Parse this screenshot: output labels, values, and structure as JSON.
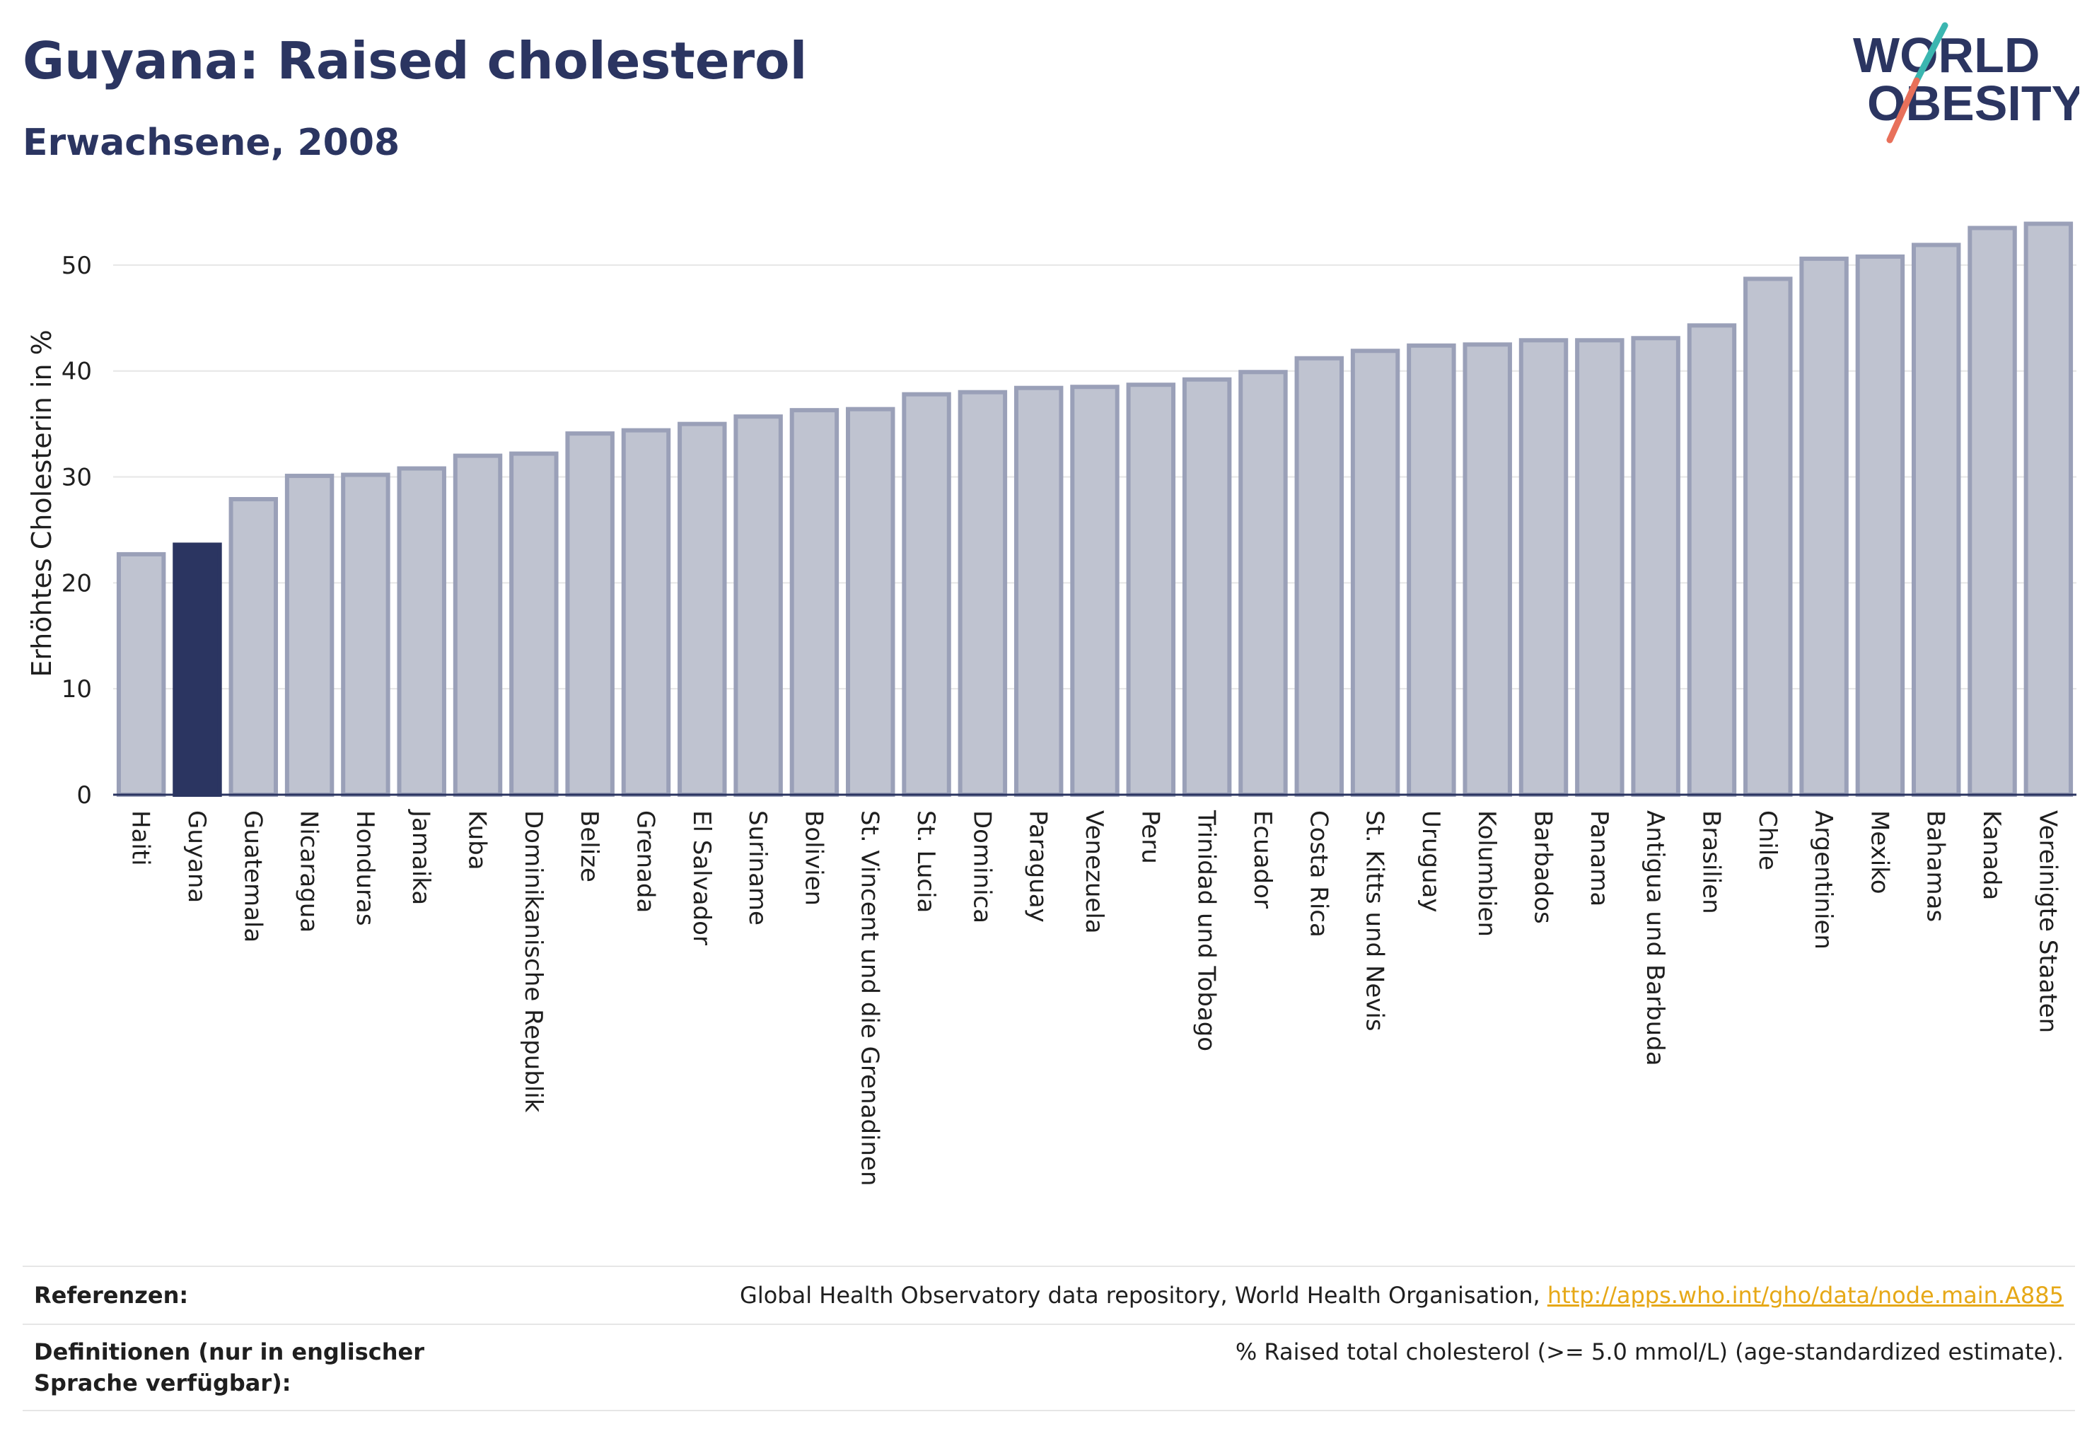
{
  "header": {
    "title": "Guyana: Raised cholesterol",
    "subtitle": "Erwachsene, 2008",
    "logo_line1": "WORLD",
    "logo_line2": "OBESITY"
  },
  "chart_data": {
    "type": "bar",
    "ylabel": "Erhöhtes Cholesterin in %",
    "ylim": [
      0,
      55
    ],
    "yticks": [
      0,
      10,
      20,
      30,
      40,
      50
    ],
    "grid": true,
    "highlight": "Guyana",
    "colors": {
      "bar": "#bfc3d0",
      "bar_edge": "#9aa0b8",
      "highlight": "#2b3561"
    },
    "categories": [
      "Haiti",
      "Guyana",
      "Guatemala",
      "Nicaragua",
      "Honduras",
      "Jamaika",
      "Kuba",
      "Dominikanische Republik",
      "Belize",
      "Grenada",
      "El Salvador",
      "Suriname",
      "Bolivien",
      "St. Vincent und die Grenadinen",
      "St. Lucia",
      "Dominica",
      "Paraguay",
      "Venezuela",
      "Peru",
      "Trinidad und Tobago",
      "Ecuador",
      "Costa Rica",
      "St. Kitts und Nevis",
      "Uruguay",
      "Kolumbien",
      "Barbados",
      "Panama",
      "Antigua und Barbuda",
      "Brasilien",
      "Chile",
      "Argentinien",
      "Mexiko",
      "Bahamas",
      "Kanada",
      "Vereinigte Staaten"
    ],
    "values": [
      22.7,
      23.6,
      27.9,
      30.1,
      30.2,
      30.8,
      32.0,
      32.2,
      34.1,
      34.4,
      35.0,
      35.7,
      36.3,
      36.4,
      37.8,
      38.0,
      38.4,
      38.5,
      38.7,
      39.2,
      39.9,
      41.2,
      41.9,
      42.4,
      42.5,
      42.9,
      42.9,
      43.1,
      44.3,
      48.7,
      50.6,
      50.8,
      51.9,
      53.5,
      53.9
    ]
  },
  "footer": {
    "references_label": "Referenzen:",
    "references_text": "Global Health Observatory data repository, World Health Organisation, ",
    "references_link": "http://apps.who.int/gho/data/node.main.A885",
    "definitions_label": "Definitionen (nur in englischer Sprache verfügbar):",
    "definitions_text": "% Raised total cholesterol (>= 5.0 mmol/L) (age-standardized estimate)."
  }
}
